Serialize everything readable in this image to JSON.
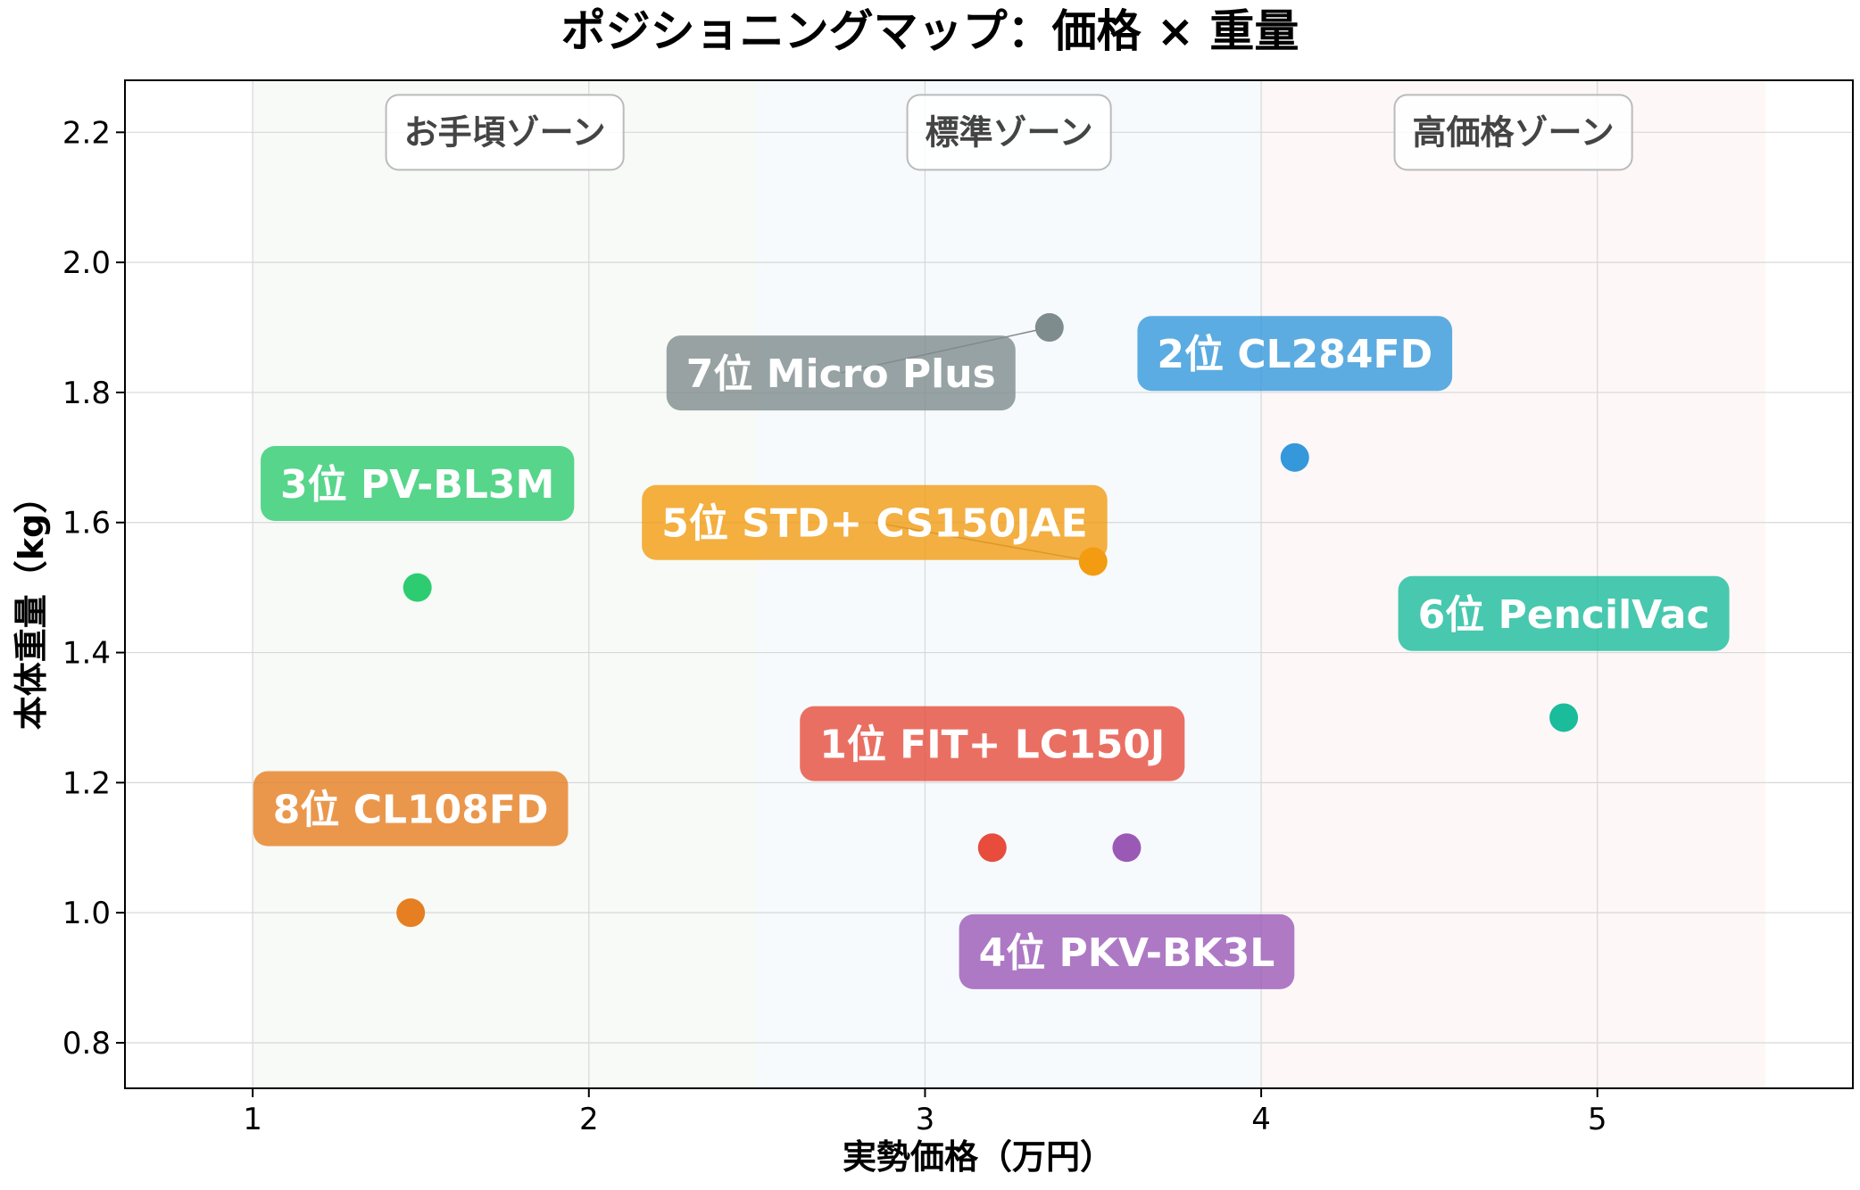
{
  "chart_data": {
    "type": "scatter",
    "title": "ポジショニングマップ：価格 × 重量",
    "xlabel": "実勢価格（万円）",
    "ylabel": "本体重量（kg）",
    "xlim": [
      0.62,
      5.76
    ],
    "ylim": [
      0.73,
      2.28
    ],
    "xticks": [
      1,
      2,
      3,
      4,
      5
    ],
    "yticks": [
      0.8,
      1.0,
      1.2,
      1.4,
      1.6,
      1.8,
      2.0,
      2.2
    ],
    "ytick_labels": [
      "0.8",
      "1.0",
      "1.2",
      "1.4",
      "1.6",
      "1.8",
      "2.0",
      "2.2"
    ],
    "grid": true,
    "zones": [
      {
        "label": "お手頃ゾーン",
        "x_range": [
          1.0,
          2.5
        ],
        "color": "#e8f0e4"
      },
      {
        "label": "標準ゾーン",
        "x_range": [
          2.5,
          4.0
        ],
        "color": "#e4f0f8"
      },
      {
        "label": "高価格ゾーン",
        "x_range": [
          4.0,
          5.5
        ],
        "color": "#f8e8e8"
      }
    ],
    "points": [
      {
        "label": "1位 FIT+ LC150J",
        "x": 3.2,
        "y": 1.1,
        "color": "#e74c3c",
        "label_x": 3.2,
        "label_y": 1.26
      },
      {
        "label": "2位 CL284FD",
        "x": 4.1,
        "y": 1.7,
        "color": "#3498db",
        "label_x": 4.1,
        "label_y": 1.86
      },
      {
        "label": "3位 PV-BL3M",
        "x": 1.49,
        "y": 1.5,
        "color": "#2ecc71",
        "label_x": 1.49,
        "label_y": 1.66
      },
      {
        "label": "4位 PKV-BK3L",
        "x": 3.6,
        "y": 1.1,
        "color": "#9b59b6",
        "label_x": 3.6,
        "label_y": 0.94
      },
      {
        "label": "5位 STD+ CS150JAE",
        "x": 3.5,
        "y": 1.54,
        "color": "#f39c12",
        "label_x": 2.85,
        "label_y": 1.6
      },
      {
        "label": "6位 PencilVac",
        "x": 4.9,
        "y": 1.3,
        "color": "#1abc9c",
        "label_x": 4.9,
        "label_y": 1.46
      },
      {
        "label": "7位 Micro Plus",
        "x": 3.37,
        "y": 1.9,
        "color": "#7f8c8d",
        "label_x": 2.75,
        "label_y": 1.83
      },
      {
        "label": "8位 CL108FD",
        "x": 1.47,
        "y": 1.0,
        "color": "#e67e22",
        "label_x": 1.47,
        "label_y": 1.16
      }
    ]
  }
}
